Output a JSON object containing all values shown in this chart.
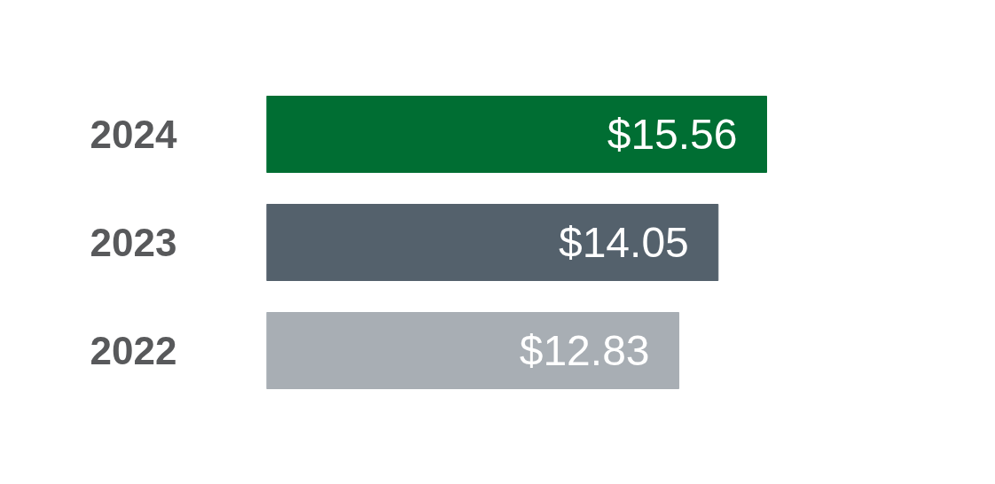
{
  "chart_data": {
    "type": "bar",
    "orientation": "horizontal",
    "categories": [
      "2024",
      "2023",
      "2022"
    ],
    "values": [
      15.56,
      14.05,
      12.83
    ],
    "colors": [
      "#006e33",
      "#54616c",
      "#a8aeb4"
    ],
    "value_labels": [
      "$15.56",
      "$14.05",
      "$12.83"
    ]
  }
}
